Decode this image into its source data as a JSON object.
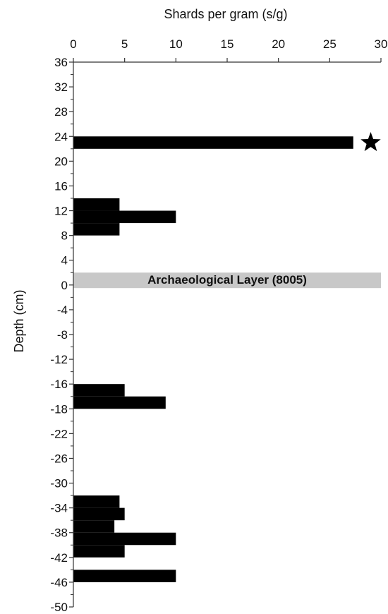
{
  "chart_data": {
    "type": "bar",
    "orientation": "horizontal",
    "xlabel": "Shards per gram (s/g)",
    "ylabel": "Depth (cm)",
    "xlim": [
      0,
      30
    ],
    "ylim": [
      -50,
      36
    ],
    "x_ticks": [
      "0",
      "5",
      "10",
      "15",
      "20",
      "25",
      "30"
    ],
    "y_ticks": [
      "36",
      "32",
      "28",
      "24",
      "20",
      "16",
      "12",
      "8",
      "4",
      "0",
      "-4",
      "-8",
      "-12",
      "-16",
      "-18",
      "-22",
      "-26",
      "-30",
      "-34",
      "-38",
      "-42",
      "-46",
      "-50"
    ],
    "bar_color": "#000000",
    "bars": [
      {
        "depth_top": 24,
        "depth_bottom": 22,
        "value": 27.3
      },
      {
        "depth_top": 14,
        "depth_bottom": 12,
        "value": 4.5
      },
      {
        "depth_top": 12,
        "depth_bottom": 10,
        "value": 10
      },
      {
        "depth_top": 10,
        "depth_bottom": 8,
        "value": 4.5
      },
      {
        "depth_top": -16,
        "depth_bottom": -18,
        "value": 5
      },
      {
        "depth_top": -18,
        "depth_bottom": -20,
        "value": 9
      },
      {
        "depth_top": -34,
        "depth_bottom": -36,
        "value": 4.5
      },
      {
        "depth_top": -36,
        "depth_bottom": -38,
        "value": 5
      },
      {
        "depth_top": -38,
        "depth_bottom": -40,
        "value": 4
      },
      {
        "depth_top": -40,
        "depth_bottom": -42,
        "value": 10
      },
      {
        "depth_top": -42,
        "depth_bottom": -44,
        "value": 5
      },
      {
        "depth_top": -46,
        "depth_bottom": -48,
        "value": 10
      }
    ],
    "annotations": [
      {
        "type": "band",
        "label": "Archaeological Layer (8005)",
        "depth_top": 2,
        "depth_bottom": -0.5,
        "color": "#c8c8c8"
      },
      {
        "type": "marker",
        "icon": "star-icon",
        "value": 29,
        "depth": 23
      }
    ]
  }
}
